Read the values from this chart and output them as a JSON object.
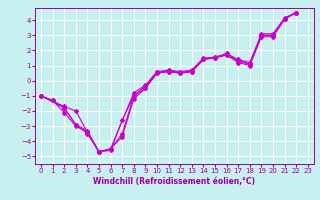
{
  "title": "",
  "xlabel": "Windchill (Refroidissement éolien,°C)",
  "ylabel": "",
  "bg_color": "#c8f0f0",
  "grid_color": "#ffffff",
  "line_color": "#cc00cc",
  "marker": "D",
  "markersize": 2.0,
  "linewidth": 0.8,
  "xlim": [
    -0.5,
    23.5
  ],
  "ylim": [
    -5.5,
    4.8
  ],
  "yticks": [
    -5,
    -4,
    -3,
    -2,
    -1,
    0,
    1,
    2,
    3,
    4
  ],
  "xticks": [
    0,
    1,
    2,
    3,
    4,
    5,
    6,
    7,
    8,
    9,
    10,
    11,
    12,
    13,
    14,
    15,
    16,
    17,
    18,
    19,
    20,
    21,
    22,
    23
  ],
  "lines": [
    [
      0,
      -1.0,
      1,
      -1.3,
      2,
      -2.1,
      3,
      -3.0,
      4,
      -3.4,
      5,
      -4.7,
      6,
      -4.6,
      7,
      -2.6,
      8,
      -1.0,
      9,
      -0.5,
      10,
      0.5,
      11,
      0.6,
      12,
      0.5,
      13,
      0.6,
      14,
      1.4,
      15,
      1.5,
      16,
      1.7,
      17,
      1.3,
      18,
      1.1,
      19,
      3.0,
      20,
      3.0,
      21,
      4.1,
      22,
      4.5
    ],
    [
      0,
      -1.0,
      1,
      -1.3,
      2,
      -1.8,
      3,
      -2.9,
      4,
      -3.3,
      5,
      -4.7,
      6,
      -4.5,
      8,
      -0.8,
      9,
      -0.3,
      10,
      0.6,
      11,
      0.7,
      12,
      0.6,
      13,
      0.7,
      14,
      1.5,
      15,
      1.55,
      16,
      1.8,
      17,
      1.4,
      18,
      1.2,
      19,
      3.1,
      20,
      3.1,
      21,
      4.15,
      22,
      4.5
    ],
    [
      0,
      -1.0,
      2,
      -1.7,
      3,
      -2.0,
      4,
      -3.4,
      5,
      -4.7,
      6,
      -4.5,
      7,
      -3.7,
      8,
      -1.2,
      9,
      -0.5,
      10,
      0.5,
      11,
      0.6,
      12,
      0.5,
      13,
      0.6,
      14,
      1.4,
      15,
      1.55,
      16,
      1.7,
      17,
      1.2,
      18,
      1.0,
      19,
      2.9,
      20,
      2.9,
      21,
      4.05,
      22,
      4.5
    ],
    [
      0,
      -1.0,
      2,
      -1.8,
      3,
      -2.9,
      4,
      -3.5,
      5,
      -4.7,
      6,
      -4.5,
      7,
      -3.5,
      8,
      -1.0,
      9,
      -0.35,
      10,
      0.55,
      11,
      0.65,
      12,
      0.55,
      13,
      0.65,
      14,
      1.45,
      15,
      1.5,
      16,
      1.75,
      17,
      1.3,
      18,
      1.1,
      19,
      3.0,
      20,
      3.0,
      21,
      4.1,
      22,
      4.5
    ]
  ],
  "tick_fontsize": 5,
  "xlabel_fontsize": 5.5,
  "xlabel_color": "#990099",
  "tick_color": "#990099",
  "spine_color": "#990099"
}
